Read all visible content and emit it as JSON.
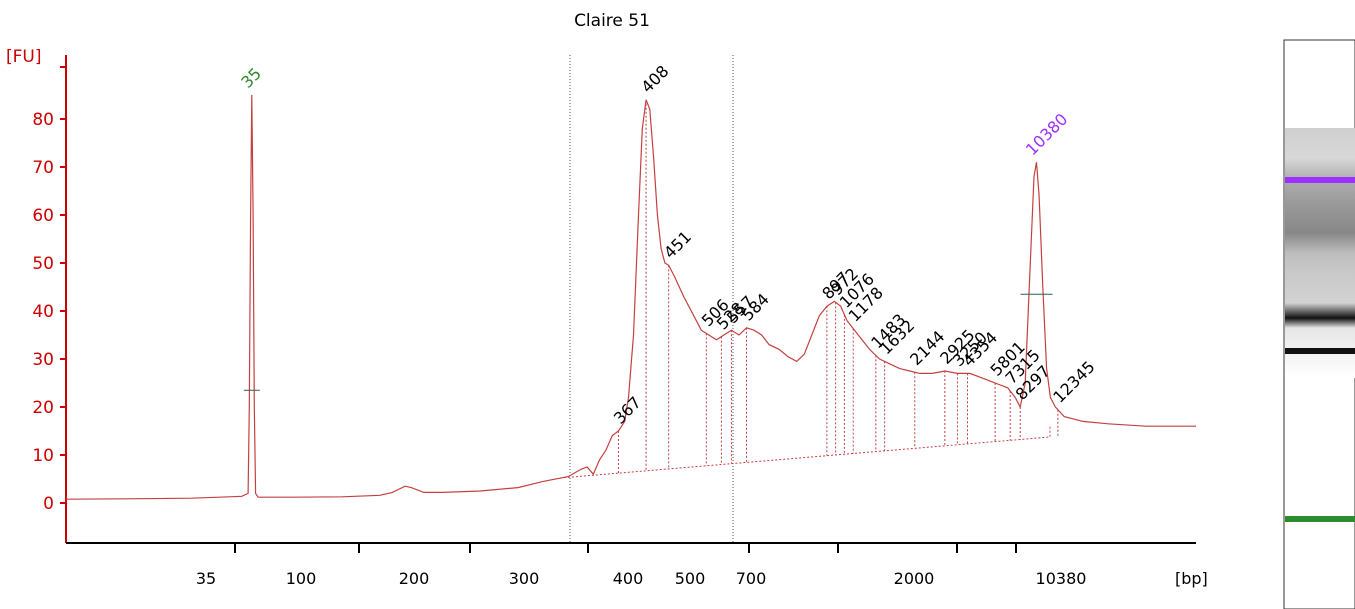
{
  "chart_data": {
    "type": "line",
    "title": "Claire 51",
    "ylabel": "[FU]",
    "xlabel": "[bp]",
    "ylim": [
      -8,
      92
    ],
    "y_ticks": [
      0,
      10,
      20,
      30,
      40,
      50,
      60,
      70,
      80
    ],
    "x_ticks": [
      "35",
      "100",
      "200",
      "300",
      "400",
      "500",
      "700",
      "2000",
      "10380"
    ],
    "grid": false,
    "colors": {
      "trace": "#c44040",
      "axis": "#cc0000",
      "lower_marker": "#2e8b2e",
      "upper_marker": "#9b30ff",
      "peak_label": "#000000",
      "gate": "#555555"
    },
    "marker_labels": [
      {
        "label": "35",
        "color": "#2e8b2e"
      },
      {
        "label": "10380",
        "color": "#9b30ff"
      }
    ],
    "peak_labels": [
      "367",
      "408",
      "451",
      "506",
      "528",
      "557",
      "584",
      "897",
      "972",
      "1076",
      "1178",
      "1483",
      "1632",
      "2144",
      "2925",
      "3250",
      "4354",
      "5801",
      "7315",
      "8297",
      "12345"
    ],
    "trace": [
      [
        0,
        0.8
      ],
      [
        60,
        0.9
      ],
      [
        100,
        1.0
      ],
      [
        130,
        1.3
      ],
      [
        140,
        1.4
      ],
      [
        145,
        2
      ],
      [
        146,
        20
      ],
      [
        147,
        60
      ],
      [
        148,
        85
      ],
      [
        149,
        60
      ],
      [
        150,
        20
      ],
      [
        151,
        2
      ],
      [
        153,
        1.2
      ],
      [
        180,
        1.2
      ],
      [
        220,
        1.3
      ],
      [
        250,
        1.6
      ],
      [
        260,
        2.2
      ],
      [
        270,
        3.5
      ],
      [
        275,
        3.2
      ],
      [
        285,
        2.2
      ],
      [
        300,
        2.2
      ],
      [
        330,
        2.5
      ],
      [
        360,
        3.2
      ],
      [
        380,
        4.5
      ],
      [
        400,
        5.5
      ],
      [
        410,
        7
      ],
      [
        415,
        7.5
      ],
      [
        420,
        6
      ],
      [
        425,
        9
      ],
      [
        430,
        11
      ],
      [
        435,
        14
      ],
      [
        440,
        15
      ],
      [
        445,
        17
      ],
      [
        448,
        22
      ],
      [
        452,
        35
      ],
      [
        456,
        60
      ],
      [
        459,
        78
      ],
      [
        462,
        84
      ],
      [
        465,
        82
      ],
      [
        468,
        72
      ],
      [
        471,
        60
      ],
      [
        474,
        53
      ],
      [
        477,
        50
      ],
      [
        480,
        49.5
      ],
      [
        485,
        47
      ],
      [
        492,
        43
      ],
      [
        500,
        39
      ],
      [
        506,
        36
      ],
      [
        512,
        35
      ],
      [
        518,
        34
      ],
      [
        524,
        35
      ],
      [
        530,
        36
      ],
      [
        536,
        35
      ],
      [
        542,
        36.5
      ],
      [
        548,
        36
      ],
      [
        554,
        35
      ],
      [
        560,
        33
      ],
      [
        568,
        32
      ],
      [
        575,
        30.5
      ],
      [
        582,
        29.5
      ],
      [
        588,
        31
      ],
      [
        594,
        35
      ],
      [
        600,
        39
      ],
      [
        606,
        41
      ],
      [
        612,
        42
      ],
      [
        617,
        41
      ],
      [
        622,
        38
      ],
      [
        628,
        36
      ],
      [
        634,
        34
      ],
      [
        640,
        32
      ],
      [
        648,
        30
      ],
      [
        656,
        29
      ],
      [
        664,
        28
      ],
      [
        672,
        27.5
      ],
      [
        680,
        27
      ],
      [
        690,
        27
      ],
      [
        700,
        27.5
      ],
      [
        710,
        27
      ],
      [
        720,
        27
      ],
      [
        730,
        26
      ],
      [
        740,
        25
      ],
      [
        750,
        24
      ],
      [
        756,
        22
      ],
      [
        760,
        20
      ],
      [
        764,
        25
      ],
      [
        768,
        50
      ],
      [
        771,
        68
      ],
      [
        773,
        71
      ],
      [
        775,
        64
      ],
      [
        778,
        45
      ],
      [
        781,
        28
      ],
      [
        784,
        22
      ],
      [
        788,
        20
      ],
      [
        795,
        18
      ],
      [
        810,
        17
      ],
      [
        830,
        16.5
      ],
      [
        860,
        16
      ],
      [
        880,
        16
      ],
      [
        900,
        16
      ]
    ],
    "gates": [
      0,
      0
    ],
    "peaks": [
      {
        "x": 440,
        "y": 15,
        "label": "367"
      },
      {
        "x": 462,
        "y": 84,
        "label": "408"
      },
      {
        "x": 480,
        "y": 49.5,
        "label": "451"
      },
      {
        "x": 510,
        "y": 35,
        "label": "506"
      },
      {
        "x": 522,
        "y": 35,
        "label": "528"
      },
      {
        "x": 530,
        "y": 36,
        "label": "557"
      },
      {
        "x": 542,
        "y": 36.5,
        "label": "584"
      },
      {
        "x": 606,
        "y": 41,
        "label": "897"
      },
      {
        "x": 613,
        "y": 42,
        "label": "972"
      },
      {
        "x": 620,
        "y": 39,
        "label": "1076"
      },
      {
        "x": 627,
        "y": 36,
        "label": "1178"
      },
      {
        "x": 645,
        "y": 30,
        "label": "1483"
      },
      {
        "x": 652,
        "y": 29,
        "label": "1632"
      },
      {
        "x": 676,
        "y": 27.5,
        "label": "2144"
      },
      {
        "x": 700,
        "y": 27.5,
        "label": "2925"
      },
      {
        "x": 710,
        "y": 27,
        "label": "3250"
      },
      {
        "x": 718,
        "y": 27,
        "label": "4354"
      },
      {
        "x": 740,
        "y": 25,
        "label": "5801"
      },
      {
        "x": 752,
        "y": 23,
        "label": "7315"
      },
      {
        "x": 760,
        "y": 20,
        "label": "8297"
      },
      {
        "x": 790,
        "y": 19,
        "label": "12345"
      }
    ]
  }
}
